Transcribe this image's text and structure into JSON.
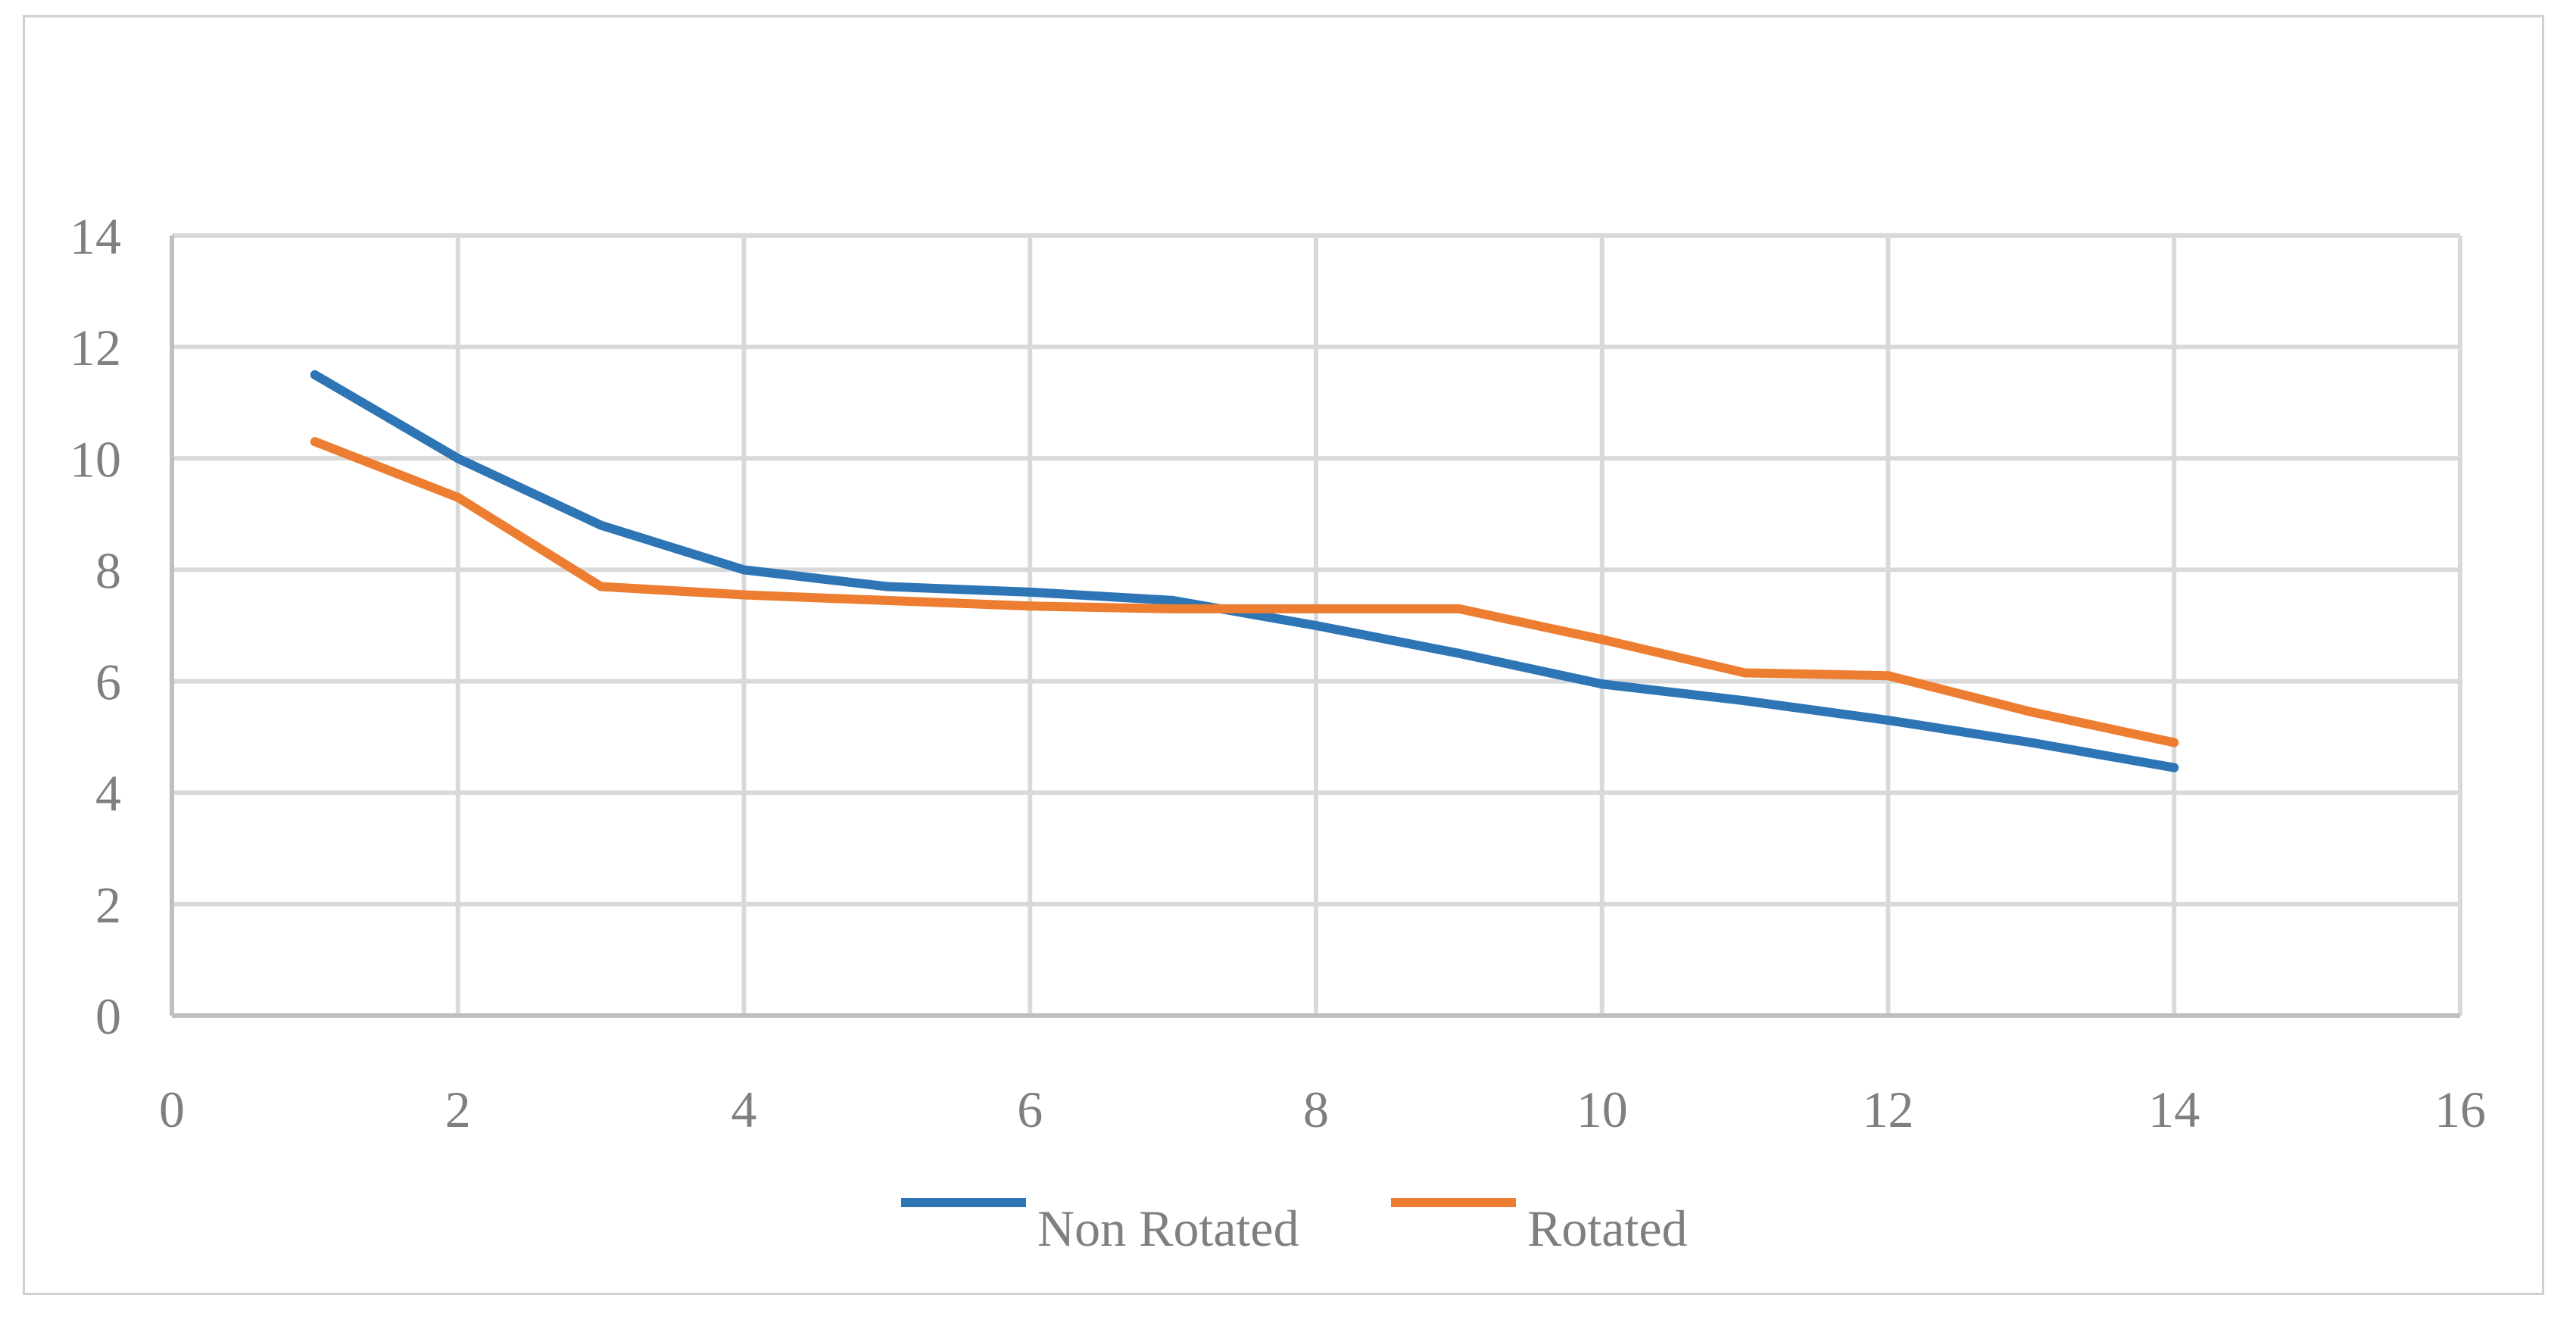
{
  "chart_data": {
    "type": "line",
    "title": "",
    "xlabel": "",
    "ylabel": "",
    "xlim": [
      0,
      16
    ],
    "ylim": [
      0,
      14
    ],
    "x_ticks": [
      0,
      2,
      4,
      6,
      8,
      10,
      12,
      14,
      16
    ],
    "y_ticks": [
      0,
      2,
      4,
      6,
      8,
      10,
      12,
      14
    ],
    "grid": true,
    "legend_position": "bottom",
    "x": [
      1,
      2,
      3,
      4,
      5,
      6,
      7,
      8,
      9,
      10,
      11,
      12,
      13,
      14
    ],
    "series": [
      {
        "name": "Non Rotated",
        "color": "#2e75b6",
        "values": [
          11.5,
          10.0,
          8.8,
          8.0,
          7.7,
          7.6,
          7.45,
          7.0,
          6.5,
          5.95,
          5.65,
          5.3,
          4.9,
          4.45
        ]
      },
      {
        "name": "Rotated",
        "color": "#ed7d31",
        "values": [
          10.3,
          9.3,
          7.7,
          7.55,
          7.45,
          7.35,
          7.3,
          7.3,
          7.3,
          6.75,
          6.15,
          6.1,
          5.45,
          4.9
        ]
      }
    ]
  }
}
